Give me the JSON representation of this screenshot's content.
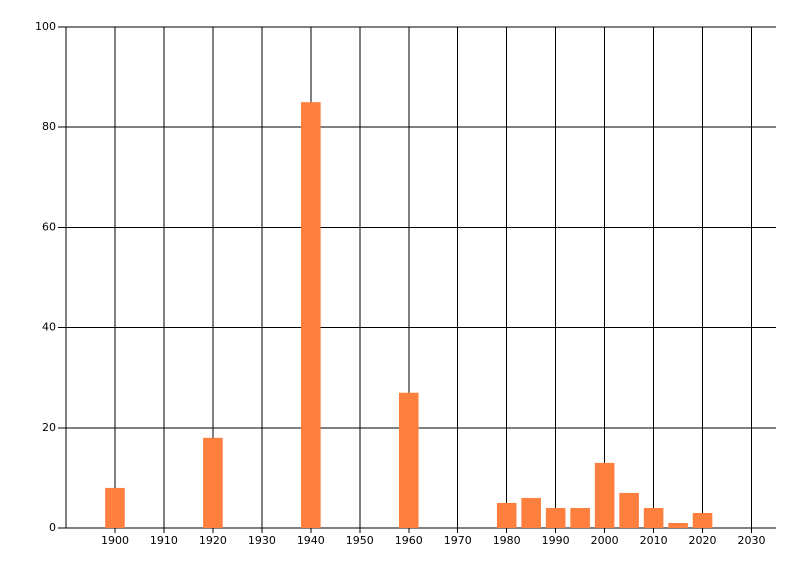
{
  "chart_data": {
    "type": "bar",
    "x": [
      1900,
      1920,
      1940,
      1960,
      1980,
      1985,
      1990,
      1995,
      2000,
      2005,
      2010,
      2015,
      2020
    ],
    "values": [
      8,
      18,
      85,
      27,
      5,
      6,
      4,
      4,
      13,
      7,
      4,
      1,
      3
    ],
    "color": "#ff7f3f",
    "xlim": [
      1890,
      2035
    ],
    "xticks": [
      1900,
      1910,
      1920,
      1930,
      1940,
      1950,
      1960,
      1970,
      1980,
      1990,
      2000,
      2010,
      2020,
      2030
    ],
    "ylim": [
      0,
      100
    ],
    "yticks": [
      0,
      20,
      40,
      60,
      80,
      100
    ],
    "grid": true
  }
}
